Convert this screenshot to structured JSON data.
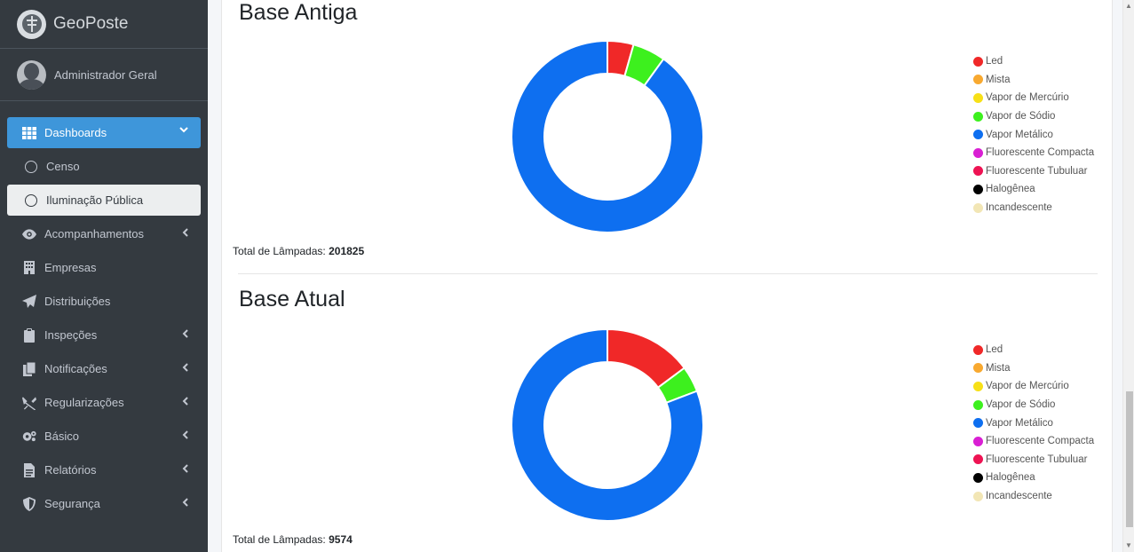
{
  "brand": {
    "name": "GeoPoste"
  },
  "user": {
    "name": "Administrador Geral"
  },
  "menu": [
    {
      "label": "Dashboards",
      "icon": "grid-icon",
      "state": "active",
      "chevron": "down"
    },
    {
      "label": "Censo",
      "icon": "circle-icon",
      "state": "normal",
      "chevron": ""
    },
    {
      "label": "Iluminação Pública",
      "icon": "circle-icon",
      "state": "selected",
      "chevron": ""
    },
    {
      "label": "Acompanhamentos",
      "icon": "eye-icon",
      "state": "normal",
      "chevron": "left"
    },
    {
      "label": "Empresas",
      "icon": "building-icon",
      "state": "normal",
      "chevron": ""
    },
    {
      "label": "Distribuições",
      "icon": "paper-plane-icon",
      "state": "normal",
      "chevron": ""
    },
    {
      "label": "Inspeções",
      "icon": "clipboard-icon",
      "state": "normal",
      "chevron": "left"
    },
    {
      "label": "Notificações",
      "icon": "copy-icon",
      "state": "normal",
      "chevron": "left"
    },
    {
      "label": "Regularizações",
      "icon": "tools-icon",
      "state": "normal",
      "chevron": "left"
    },
    {
      "label": "Básico",
      "icon": "cogs-icon",
      "state": "normal",
      "chevron": "left"
    },
    {
      "label": "Relatórios",
      "icon": "file-icon",
      "state": "normal",
      "chevron": "left"
    },
    {
      "label": "Segurança",
      "icon": "shield-icon",
      "state": "normal",
      "chevron": "left"
    }
  ],
  "colors": {
    "sidebar": "#343a40",
    "active": "#3e96da",
    "Led": "#f02828",
    "Mista": "#f8a930",
    "Vapor de Mercúrio": "#f7e017",
    "Vapor de Sódio": "#3df01e",
    "Vapor Metálico": "#0e6ff0",
    "Fluorescente Compacta": "#d91fd3",
    "Fluorescente Tubuluar": "#ee1353",
    "Halogênea": "#000000",
    "Incandescente": "#f2e6b5"
  },
  "sections": [
    {
      "title": "Base Antiga",
      "total_label": "Total de Lâmpadas:",
      "total_value": "201825"
    },
    {
      "title": "Base Atual",
      "total_label": "Total de Lâmpadas:",
      "total_value": "9574"
    }
  ],
  "chart_data": [
    {
      "type": "pie",
      "variant": "doughnut",
      "title": "Base Antiga",
      "legend_position": "right",
      "categories": [
        "Led",
        "Mista",
        "Vapor de Mercúrio",
        "Vapor de Sódio",
        "Vapor Metálico",
        "Fluorescente Compacta",
        "Fluorescente Tubuluar",
        "Halogênea",
        "Incandescente"
      ],
      "values": [
        8900,
        0,
        0,
        11200,
        181725,
        0,
        0,
        0,
        0
      ]
    },
    {
      "type": "pie",
      "variant": "doughnut",
      "title": "Base Atual",
      "legend_position": "right",
      "categories": [
        "Led",
        "Mista",
        "Vapor de Mercúrio",
        "Vapor de Sódio",
        "Vapor Metálico",
        "Fluorescente Compacta",
        "Fluorescente Tubuluar",
        "Halogênea",
        "Incandescente"
      ],
      "values": [
        1420,
        0,
        0,
        420,
        7734,
        0,
        0,
        0,
        0
      ]
    }
  ]
}
